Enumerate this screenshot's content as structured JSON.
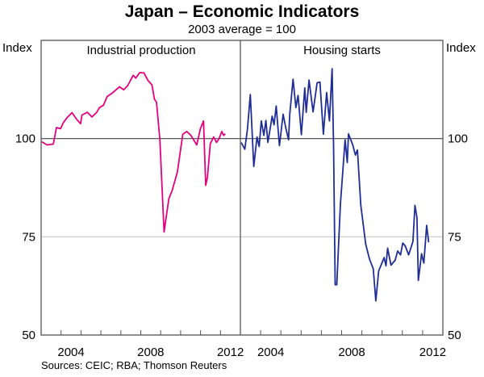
{
  "chart_data": {
    "type": "line",
    "title": "Japan – Economic Indicators",
    "subtitle": "2003 average = 100",
    "ylabel_left": "Index",
    "ylabel_right": "Index",
    "ylim": [
      50,
      125
    ],
    "yticks": [
      50,
      75,
      100
    ],
    "ytick_labels": [
      "50",
      "75",
      "100"
    ],
    "xlim": [
      2003,
      2013
    ],
    "xtick_years": [
      2004,
      2005,
      2006,
      2007,
      2008,
      2009,
      2010,
      2011,
      2012
    ],
    "xtick_labels": [
      "2004",
      "2008",
      "2012"
    ],
    "grid": true,
    "source": "Sources: CEIC; RBA; Thomson Reuters",
    "panels": [
      {
        "title": "Industrial production",
        "color": "#e6007e",
        "series": {
          "name": "Industrial production",
          "x": [
            2003.03,
            2003.3,
            2003.61,
            2003.77,
            2003.97,
            2004.11,
            2004.28,
            2004.55,
            2004.78,
            2004.98,
            2005.05,
            2005.32,
            2005.55,
            2005.79,
            2005.93,
            2006.13,
            2006.31,
            2006.6,
            2006.94,
            2007.14,
            2007.35,
            2007.62,
            2007.75,
            2007.95,
            2008.16,
            2008.36,
            2008.56,
            2008.69,
            2008.79,
            2008.96,
            2009.17,
            2009.41,
            2009.57,
            2009.84,
            2010.11,
            2010.31,
            2010.52,
            2010.81,
            2010.99,
            2011.15,
            2011.26,
            2011.35,
            2011.49,
            2011.66,
            2011.8,
            2011.93,
            2012.07,
            2012.16,
            2012.24
          ],
          "y": [
            99.2,
            98.4,
            98.6,
            102.8,
            102.5,
            104.0,
            105.2,
            106.6,
            104.9,
            103.8,
            106.0,
            106.7,
            105.5,
            106.7,
            107.9,
            108.5,
            110.7,
            111.7,
            113.2,
            112.4,
            113.5,
            116.1,
            115.4,
            116.8,
            116.7,
            114.8,
            113.7,
            110.0,
            109.3,
            99.7,
            76.2,
            84.7,
            86.7,
            91.5,
            101.1,
            101.8,
            100.8,
            98.4,
            102.5,
            104.5,
            88.1,
            90.2,
            98.7,
            100.4,
            99.0,
            100.0,
            101.8,
            100.8,
            101.2
          ]
        }
      },
      {
        "title": "Housing starts",
        "color": "#1f2d96",
        "series": {
          "name": "Housing starts",
          "x": [
            2003.04,
            2003.22,
            2003.35,
            2003.49,
            2003.66,
            2003.82,
            2003.93,
            2004.03,
            2004.16,
            2004.26,
            2004.36,
            2004.57,
            2004.66,
            2004.77,
            2004.93,
            2005.11,
            2005.24,
            2005.38,
            2005.44,
            2005.6,
            2005.74,
            2005.85,
            2006.01,
            2006.18,
            2006.25,
            2006.39,
            2006.59,
            2006.79,
            2006.93,
            2007.1,
            2007.26,
            2007.4,
            2007.53,
            2007.6,
            2007.68,
            2007.76,
            2007.94,
            2008.17,
            2008.28,
            2008.34,
            2008.55,
            2008.68,
            2008.78,
            2008.95,
            2009.19,
            2009.38,
            2009.56,
            2009.69,
            2009.83,
            2010.1,
            2010.19,
            2010.27,
            2010.44,
            2010.64,
            2010.77,
            2010.91,
            2011.02,
            2011.14,
            2011.31,
            2011.52,
            2011.62,
            2011.72,
            2011.79,
            2011.95,
            2012.06,
            2012.2,
            2012.3
          ],
          "y": [
            99.0,
            97.3,
            102.5,
            111.2,
            92.9,
            100.4,
            98.0,
            104.5,
            100.8,
            104.6,
            99.0,
            105.7,
            103.5,
            108.3,
            98.2,
            106.2,
            102.8,
            99.7,
            106.2,
            115.1,
            107.9,
            111.0,
            101.0,
            112.9,
            106.7,
            114.9,
            106.8,
            114.2,
            114.4,
            101.1,
            111.7,
            104.5,
            117.8,
            98.4,
            62.8,
            62.8,
            83.3,
            99.7,
            93.9,
            101.2,
            98.4,
            95.8,
            97.1,
            83.0,
            73.1,
            69.3,
            66.9,
            58.7,
            66.3,
            69.7,
            67.6,
            72.1,
            67.8,
            69.0,
            71.4,
            70.4,
            73.4,
            72.7,
            70.4,
            73.8,
            83.0,
            79.9,
            63.9,
            70.7,
            68.3,
            77.9,
            73.6
          ]
        }
      }
    ]
  }
}
